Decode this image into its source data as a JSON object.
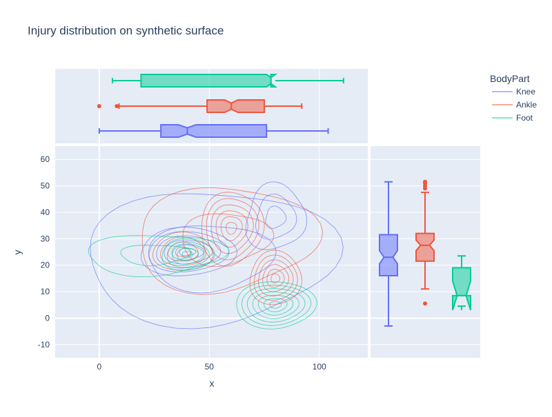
{
  "chart_data": {
    "type": "contour-with-marginal-box",
    "title": "Injury distribution on synthetic surface",
    "xlabel": "x",
    "ylabel": "y",
    "xlim": [
      -20,
      122
    ],
    "ylim": [
      -15,
      65
    ],
    "x_ticks": [
      0,
      50,
      100
    ],
    "y_ticks": [
      -10,
      0,
      10,
      20,
      30,
      40,
      50,
      60
    ],
    "legend": {
      "title": "BodyPart",
      "placement": "top-right"
    },
    "grid": true,
    "series": [
      {
        "name": "Knee",
        "color": "#636efa",
        "contour_centers": [
          [
            40,
            25
          ],
          [
            80,
            38
          ]
        ],
        "box_x": {
          "lower_fence": 0,
          "q1": 28,
          "notch_low": 36,
          "median": 40,
          "notch_high": 44,
          "q3": 76,
          "upper_fence": 104,
          "outliers": []
        },
        "box_y": {
          "lower_fence": -3,
          "q1": 16,
          "notch_low": 20.5,
          "median": 23,
          "notch_high": 25.5,
          "q3": 31.5,
          "upper_fence": 51.5,
          "outliers": []
        }
      },
      {
        "name": "Ankle",
        "color": "#ef553b",
        "contour_centers": [
          [
            60,
            34
          ],
          [
            80,
            15
          ],
          [
            38,
            25
          ]
        ],
        "box_x": {
          "lower_fence": 9,
          "q1": 49,
          "notch_low": 57,
          "median": 60,
          "notch_high": 63,
          "q3": 75,
          "upper_fence": 92,
          "outliers": [
            0,
            8
          ]
        },
        "box_y": {
          "lower_fence": 11,
          "q1": 21.5,
          "notch_low": 25.5,
          "median": 27.5,
          "notch_high": 29.5,
          "q3": 32,
          "upper_fence": 47.5,
          "outliers": [
            5.5,
            49,
            50,
            51,
            51.5
          ]
        }
      },
      {
        "name": "Foot",
        "color": "#00cc96",
        "contour_centers": [
          [
            40,
            24
          ],
          [
            80,
            5
          ]
        ],
        "box_x": {
          "lower_fence": 6,
          "q1": 19,
          "notch_low": 76,
          "median": 78,
          "notch_high": 80,
          "q3": 78,
          "upper_fence": 111,
          "outliers": []
        },
        "box_y": {
          "lower_fence": 4.5,
          "q1": 8.5,
          "notch_low": 3,
          "median": 8.5,
          "notch_high": 14,
          "q3": 19,
          "upper_fence": 23.5,
          "outliers": []
        }
      }
    ]
  }
}
